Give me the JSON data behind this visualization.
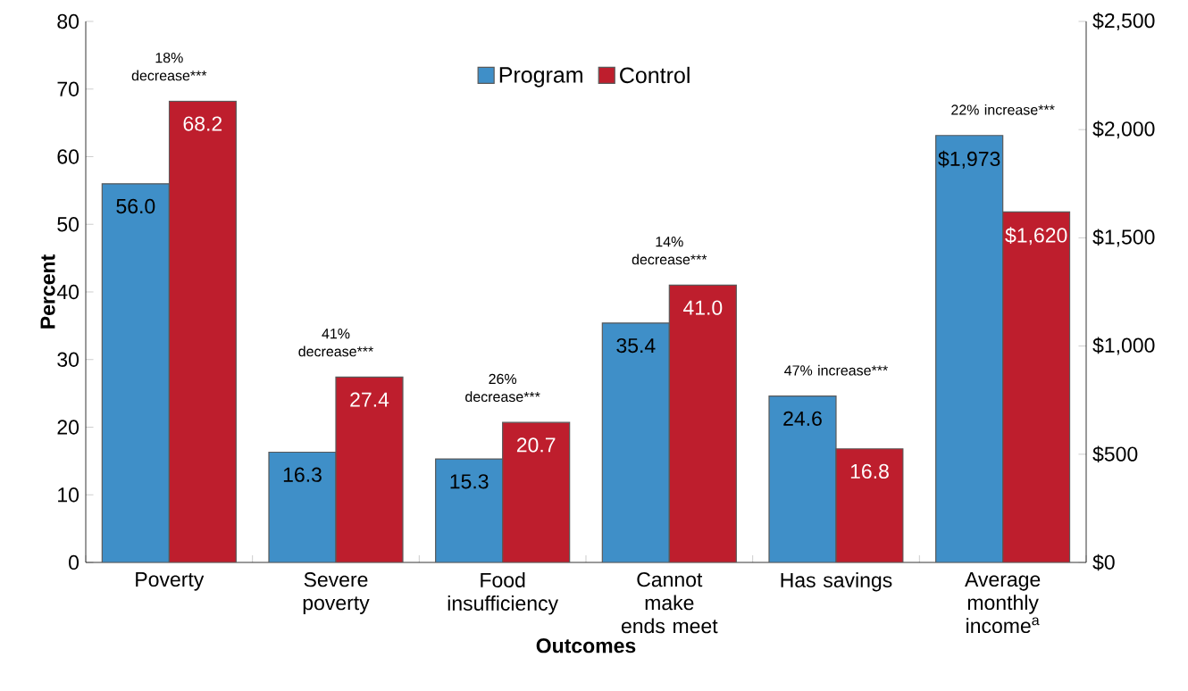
{
  "chart_data": {
    "type": "bar",
    "categories": [
      "Poverty",
      "Severe poverty",
      "Food insufficiency",
      "Cannot make ends meet",
      "Has savings",
      "Average monthly income$^{a}$"
    ],
    "series": [
      {
        "name": "Program",
        "color": "#3f8fc8",
        "values": [
          56.0,
          16.3,
          15.3,
          35.4,
          24.6,
          null
        ],
        "value_labels": [
          "56.0",
          "16.3",
          "15.3",
          "35.4",
          "24.6",
          null
        ]
      },
      {
        "name": "Control",
        "color": "#be1e2d",
        "values": [
          68.2,
          27.4,
          20.7,
          41.0,
          16.8,
          null
        ],
        "value_labels": [
          "68.2",
          "27.4",
          "20.7",
          "41.0",
          "16.8",
          null
        ]
      },
      {
        "color": "#3f8fc8",
        "axis": "y2",
        "values": [
          null,
          null,
          null,
          null,
          null,
          1973
        ],
        "value_labels": [
          null,
          null,
          null,
          null,
          null,
          "$1,973"
        ]
      },
      {
        "color": "#be1e2d",
        "axis": "y2",
        "values": [
          null,
          null,
          null,
          null,
          null,
          1620
        ],
        "value_labels": [
          null,
          null,
          null,
          null,
          null,
          "$1,620"
        ]
      }
    ],
    "xlabel": "Outcomes",
    "ylabel": "Percent",
    "ylim": [
      0,
      80
    ],
    "yticks": [
      0,
      10,
      20,
      30,
      40,
      50,
      60,
      70,
      80
    ],
    "y2lim": [
      0,
      2500
    ],
    "y2ticks": [
      {
        "value": 0,
        "label": "$0"
      },
      {
        "value": 500,
        "label": "$500"
      },
      {
        "value": 1000,
        "label": "$1,000"
      },
      {
        "value": 1500,
        "label": "$1,500"
      },
      {
        "value": 2000,
        "label": "$2,000"
      },
      {
        "value": 2500,
        "label": "$2,500"
      }
    ],
    "annotations": [
      "18% decrease***",
      "41% decrease***",
      "26% decrease***",
      "14% decrease***",
      "47% increase***",
      "22% increase***"
    ],
    "legend": "top",
    "grid": false
  }
}
